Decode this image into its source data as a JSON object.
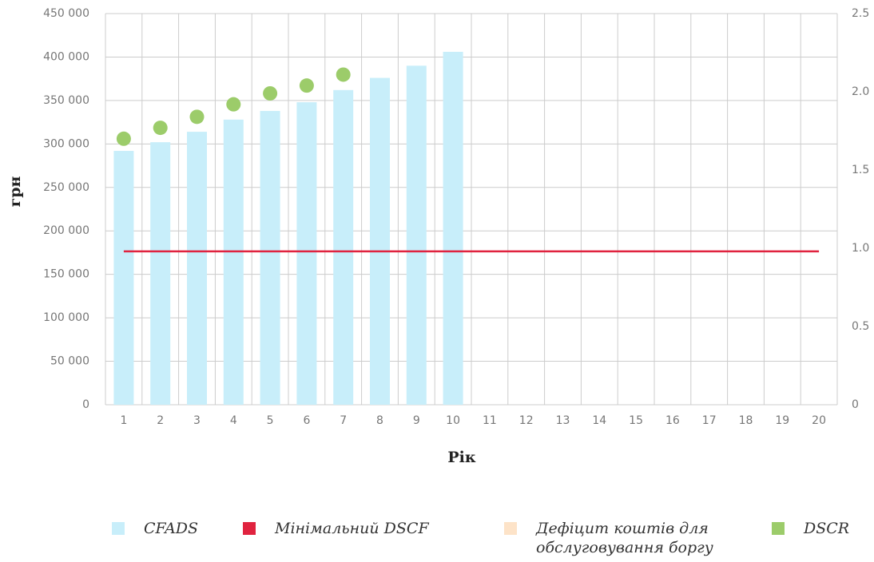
{
  "chart_data": {
    "type": "combo",
    "x_label": "Рік",
    "y_label": "грн",
    "categories": [
      "1",
      "2",
      "3",
      "4",
      "5",
      "6",
      "7",
      "8",
      "9",
      "10",
      "11",
      "12",
      "13",
      "14",
      "15",
      "16",
      "17",
      "18",
      "19",
      "20"
    ],
    "ylim": [
      0,
      450000
    ],
    "yticks": [
      0,
      {
        "value": 50000,
        "label": "50 000"
      },
      {
        "value": 100000,
        "label": "100 000"
      },
      {
        "value": 150000,
        "label": "150 000"
      },
      {
        "value": 200000,
        "label": "200 000"
      },
      {
        "value": 250000,
        "label": "250 000"
      },
      {
        "value": 300000,
        "label": "300 000"
      },
      {
        "value": 350000,
        "label": "350 000"
      },
      {
        "value": 400000,
        "label": "400 000"
      },
      {
        "value": 450000,
        "label": "450 000"
      }
    ],
    "y2lim": [
      0,
      2.5
    ],
    "y2ticks": [
      0,
      0.5,
      {
        "value": 1,
        "label": "1.0"
      },
      1.5,
      {
        "value": 2,
        "label": "2.0"
      },
      2.5
    ],
    "grid": true,
    "series": [
      {
        "name": "CFADS",
        "type": "bar",
        "color": "#c8eefa",
        "values": [
          292000,
          302000,
          314000,
          328000,
          338000,
          348000,
          362000,
          376000,
          390000,
          406000,
          null,
          null,
          null,
          null,
          null,
          null,
          null,
          null,
          null,
          null
        ]
      },
      {
        "name": "Мінімальний DSCF",
        "type": "line",
        "axis": "y2",
        "color": "#e0233f",
        "values": [
          0.98,
          0.98,
          0.98,
          0.98,
          0.98,
          0.98,
          0.98,
          0.98,
          0.98,
          0.98,
          0.98,
          0.98,
          0.98,
          0.98,
          0.98,
          0.98,
          0.98,
          0.98,
          0.98,
          0.98
        ]
      },
      {
        "name": "Дефіцит коштів для обслуговування боргу",
        "type": "bar",
        "color": "#fde3c8",
        "values": [
          null,
          null,
          null,
          null,
          null,
          null,
          null,
          null,
          null,
          null,
          null,
          null,
          null,
          null,
          null,
          null,
          null,
          null,
          null,
          null
        ]
      },
      {
        "name": "DSCR",
        "type": "scatter",
        "axis": "y2",
        "color": "#9ccc6a",
        "values": [
          1.7,
          1.77,
          1.84,
          1.92,
          1.99,
          2.04,
          2.11,
          null,
          null,
          null,
          null,
          null,
          null,
          null,
          null,
          null,
          null,
          null,
          null,
          null
        ]
      }
    ]
  }
}
